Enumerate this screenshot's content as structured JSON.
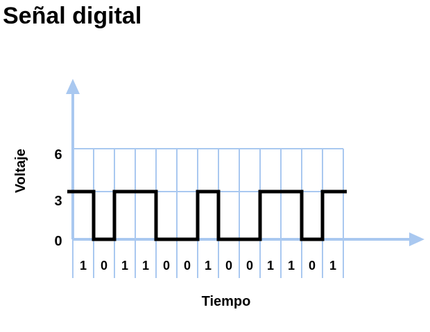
{
  "title": "Señal digital",
  "diagram": {
    "y_axis_label": "Voltaje",
    "x_axis_label": "Tiempo",
    "y_tick_labels": [
      "6",
      "3",
      "0"
    ],
    "bits": [
      "1",
      "0",
      "1",
      "1",
      "0",
      "0",
      "1",
      "0",
      "0",
      "1",
      "1",
      "0",
      "1"
    ],
    "colors": {
      "grid": "#a9c8f0",
      "axis": "#a9c8f0",
      "signal": "#000000",
      "text": "#000000"
    }
  }
}
